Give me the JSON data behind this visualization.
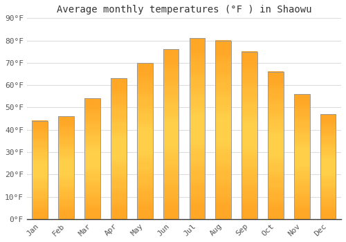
{
  "title": "Average monthly temperatures (°F ) in Shaowu",
  "months": [
    "Jan",
    "Feb",
    "Mar",
    "Apr",
    "May",
    "Jun",
    "Jul",
    "Aug",
    "Sep",
    "Oct",
    "Nov",
    "Dec"
  ],
  "values": [
    44,
    46,
    54,
    63,
    70,
    76,
    81,
    80,
    75,
    66,
    56,
    47
  ],
  "bar_color_main": "#FFA726",
  "bar_color_light": "#FFD54F",
  "bar_edge_color": "#999999",
  "ylim": [
    0,
    90
  ],
  "yticks": [
    0,
    10,
    20,
    30,
    40,
    50,
    60,
    70,
    80,
    90
  ],
  "ytick_labels": [
    "0°F",
    "10°F",
    "20°F",
    "30°F",
    "40°F",
    "50°F",
    "60°F",
    "70°F",
    "80°F",
    "90°F"
  ],
  "background_color": "#ffffff",
  "grid_color": "#dddddd",
  "title_fontsize": 10,
  "tick_fontsize": 8,
  "font_family": "monospace",
  "tick_color": "#555555"
}
